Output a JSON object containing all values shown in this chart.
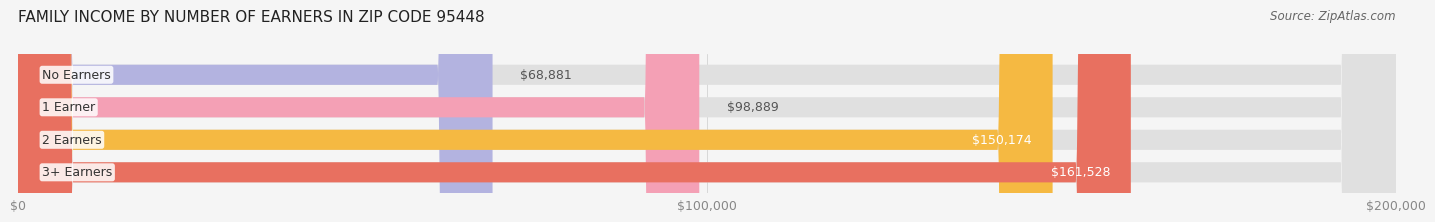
{
  "title": "FAMILY INCOME BY NUMBER OF EARNERS IN ZIP CODE 95448",
  "source": "Source: ZipAtlas.com",
  "categories": [
    "No Earners",
    "1 Earner",
    "2 Earners",
    "3+ Earners"
  ],
  "values": [
    68881,
    98889,
    150174,
    161528
  ],
  "bar_colors": [
    "#b3b3e0",
    "#f4a0b5",
    "#f5b942",
    "#e87060"
  ],
  "bar_edge_colors": [
    "#9898cc",
    "#e07090",
    "#d9952a",
    "#d05040"
  ],
  "value_labels": [
    "$68,881",
    "$98,889",
    "$150,174",
    "$161,528"
  ],
  "xlim": [
    0,
    200000
  ],
  "xtick_values": [
    0,
    100000,
    200000
  ],
  "xtick_labels": [
    "$0",
    "$100,000",
    "$200,000"
  ],
  "background_color": "#f5f5f5",
  "bar_bg_color": "#e8e8e8",
  "title_fontsize": 11,
  "label_fontsize": 9,
  "value_fontsize": 9,
  "source_fontsize": 8.5
}
